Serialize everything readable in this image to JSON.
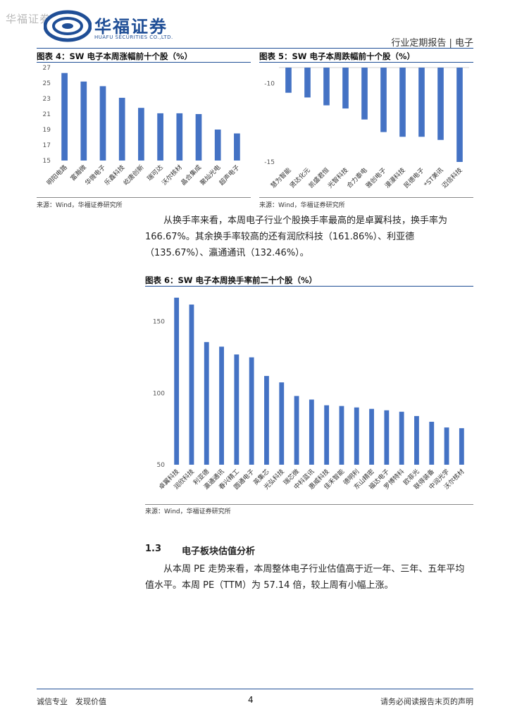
{
  "header": {
    "watermark": "华福证券",
    "logo_cn": "华福证券",
    "logo_en": "HUAFU SECURITIES CO.,LTD.",
    "report_type": "行业定期报告 | 电子"
  },
  "colors": {
    "brand": "#1f4e96",
    "bar": "#4472c4"
  },
  "figures": {
    "fig4": {
      "title": "图表 4：SW 电子本周涨幅前十个股（%）",
      "source": "来源：Wind，华福证券研究所"
    },
    "fig5": {
      "title": "图表 5：SW 电子本周跌幅前十个股（%）",
      "source": "来源：Wind，华福证券研究所"
    },
    "fig6": {
      "title": "图表 6：SW 电子本周换手率前二十个股（%）",
      "source": "来源：Wind，华福证券研究所"
    }
  },
  "chart_data": [
    {
      "type": "bar",
      "title": "SW 电子本周涨幅前十个股（%）",
      "categories": [
        "明阳电路",
        "富瀚微",
        "华微电子",
        "乐鑫科技",
        "屹唐创新",
        "瑞可达",
        "沃尔核材",
        "晶合集成",
        "聚灿光电",
        "超声电子"
      ],
      "values": [
        26.3,
        25.2,
        24.6,
        23.1,
        21.8,
        21.1,
        21.1,
        21.0,
        19.0,
        18.5
      ],
      "yticks": [
        15,
        17,
        19,
        21,
        23,
        25,
        27
      ],
      "ylim": [
        15,
        27
      ],
      "grid": false
    },
    {
      "type": "bar",
      "title": "SW 电子本周跌幅前十个股（%）",
      "categories": [
        "慧为智能",
        "贤达化元",
        "凯盛君恒",
        "光智科技",
        "合力泰电",
        "雅创电子",
        "漫漫科技",
        "民德电子",
        "*ST美讯",
        "迈信科技"
      ],
      "values": [
        -10.6,
        -10.9,
        -11.4,
        -11.6,
        -12.3,
        -13.1,
        -13.4,
        -13.4,
        -13.6,
        -15.0
      ],
      "yticks": [
        -10,
        -15
      ],
      "ylim": [
        -15,
        -9
      ],
      "grid": false
    },
    {
      "type": "bar",
      "title": "SW 电子本周换手率前二十个股（%）",
      "categories": [
        "卓翼科技",
        "润欣科技",
        "利亚德",
        "瀛通通讯",
        "春兴精工",
        "圆通电子",
        "英集芯",
        "光弘科技",
        "瑞芯微",
        "中科蓝讯",
        "惠威科技",
        "佳禾智能",
        "德明利",
        "东山精密",
        "福达电子",
        "罗博特科",
        "欧菲光",
        "联得装备",
        "中润光学",
        "沃尔核材"
      ],
      "values": [
        166.67,
        161.86,
        135.67,
        132.46,
        127.0,
        125.0,
        112.0,
        107.5,
        98.0,
        95.5,
        91.5,
        91.0,
        90.0,
        89.0,
        88.0,
        87.0,
        84.0,
        80.0,
        76.0,
        75.5
      ],
      "yticks": [
        50,
        100,
        150
      ],
      "ylim": [
        50,
        170
      ],
      "grid": false
    }
  ],
  "paragraph1": "从换手率来看，本周电子行业个股换手率最高的是卓翼科技，换手率为 166.67%。其余换手率较高的还有润欣科技（161.86%）、利亚德（135.67%）、瀛通通讯（132.46%）。",
  "section": {
    "number": "1.3",
    "title": "电子板块估值分析"
  },
  "paragraph2": "从本周 PE 走势来看，本周整体电子行业估值高于近一年、三年、五年平均值水平。本周 PE（TTM）为 57.14 倍，较上周有小幅上涨。",
  "footer": {
    "left": "诚信专业　发现价值",
    "page": "4",
    "right": "请务必阅读报告末页的声明"
  }
}
